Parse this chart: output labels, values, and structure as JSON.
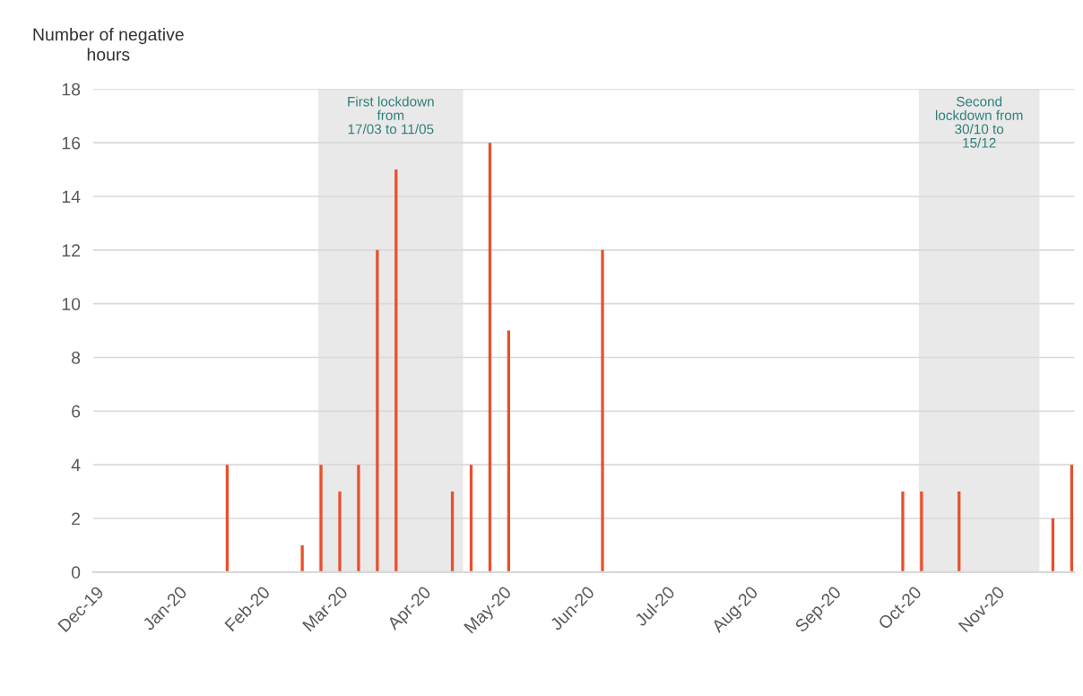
{
  "chart_data": {
    "type": "bar",
    "ylabel": "Number of negative\nhours",
    "x": [
      "2020-01-19",
      "2020-02-16",
      "2020-02-23",
      "2020-03-01",
      "2020-03-08",
      "2020-03-15",
      "2020-03-22",
      "2020-04-12",
      "2020-04-19",
      "2020-04-26",
      "2020-05-03",
      "2020-06-07",
      "2020-09-27",
      "2020-10-04",
      "2020-10-18",
      "2020-11-22",
      "2020-11-29"
    ],
    "values": [
      4,
      1,
      4,
      3,
      4,
      12,
      15,
      3,
      4,
      16,
      9,
      12,
      3,
      3,
      3,
      2,
      4
    ],
    "color": "#e8502e",
    "xlim": [
      "2019-11-30",
      "2020-11-30"
    ],
    "xticks": [
      {
        "value": "2019-12-01",
        "label": "Dec-19"
      },
      {
        "value": "2020-01-01",
        "label": "Jan-20"
      },
      {
        "value": "2020-02-01",
        "label": "Feb-20"
      },
      {
        "value": "2020-03-01",
        "label": "Mar-20"
      },
      {
        "value": "2020-04-01",
        "label": "Apr-20"
      },
      {
        "value": "2020-05-01",
        "label": "May-20"
      },
      {
        "value": "2020-06-01",
        "label": "Jun-20"
      },
      {
        "value": "2020-07-01",
        "label": "Jul-20"
      },
      {
        "value": "2020-08-01",
        "label": "Aug-20"
      },
      {
        "value": "2020-09-01",
        "label": "Sep-20"
      },
      {
        "value": "2020-10-01",
        "label": "Oct-20"
      },
      {
        "value": "2020-11-01",
        "label": "Nov-20"
      }
    ],
    "ylim": [
      0,
      18
    ],
    "yticks": [
      0,
      2,
      4,
      6,
      8,
      10,
      12,
      14,
      16,
      18
    ],
    "grid": "y",
    "legend": false,
    "bands": [
      {
        "axis": "x",
        "from": "2020-02-22",
        "to": "2020-04-16",
        "label": "First lockdown\nfrom\n17/03 to 11/05",
        "color": "#e9e9e9"
      },
      {
        "axis": "x",
        "from": "2020-10-03",
        "to": "2020-11-17",
        "label": "Second\nlockdown from\n30/10 to\n15/12",
        "color": "#e9e9e9"
      }
    ]
  }
}
